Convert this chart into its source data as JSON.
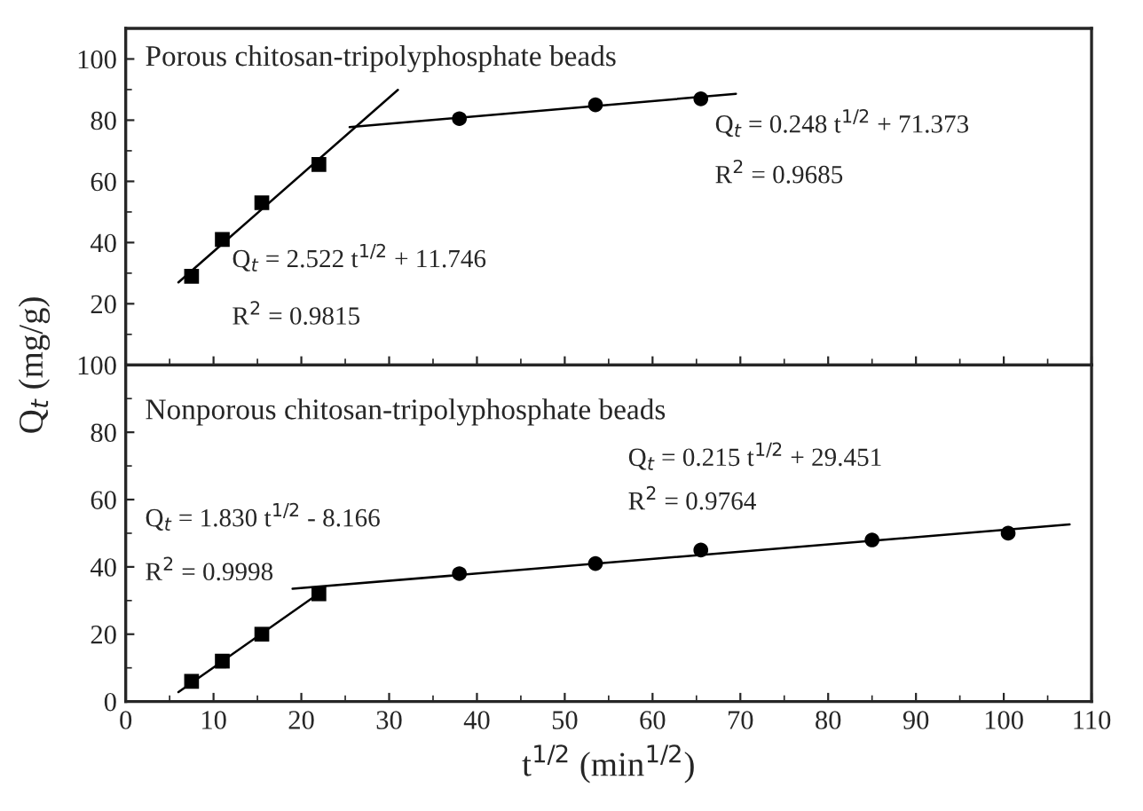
{
  "chart_data": [
    {
      "type": "scatter",
      "title": "Porous chitosan-tripolyphosphate beads",
      "ylabel": "Q$_{t}$ (mg/g)",
      "xlim": [
        0,
        110
      ],
      "xticks": [
        0,
        10,
        20,
        30,
        40,
        50,
        60,
        70,
        80,
        90,
        100,
        110
      ],
      "ylim": [
        0,
        110
      ],
      "yticks": [
        {
          "value": 0,
          "label": null
        },
        20,
        40,
        60,
        80,
        100
      ],
      "tick_labels": "y",
      "grid": false,
      "legend": false,
      "series": [
        {
          "marker": "square",
          "color": "#000000",
          "x": [
            7.5,
            11,
            15.5,
            22
          ],
          "values": [
            29,
            41,
            53,
            65.5
          ]
        },
        {
          "marker": "circle",
          "color": "#000000",
          "x": [
            38,
            53.5,
            65.5
          ],
          "values": [
            80.5,
            85,
            87
          ]
        },
        {
          "type": "line",
          "marker": "none",
          "color": "#000000",
          "x": [
            6,
            31
          ],
          "values": [
            27,
            89.9
          ]
        },
        {
          "type": "line",
          "marker": "none",
          "color": "#000000",
          "x": [
            25.5,
            69.5
          ],
          "values": [
            77.7,
            88.6
          ]
        }
      ],
      "annotations": [
        "Q$_{t}$ = 2.522 t$^{1/2}$ + 11.746",
        "R$^{2}$ = 0.9815",
        "Q$_{t}$ = 0.248 t$^{1/2}$ + 71.373",
        "R$^{2}$ = 0.9685"
      ]
    },
    {
      "type": "scatter",
      "title": "Nonporous chitosan-tripolyphosphate beads",
      "xlabel": "t$^{1/2}$ (min$^{1/2}$)",
      "xlim": [
        0,
        110
      ],
      "xticks": [
        0,
        10,
        20,
        30,
        40,
        50,
        60,
        70,
        80,
        90,
        100,
        110
      ],
      "ylim": [
        0,
        100
      ],
      "yticks": [
        0,
        20,
        40,
        60,
        80,
        100
      ],
      "grid": false,
      "legend": false,
      "series": [
        {
          "marker": "square",
          "color": "#000000",
          "x": [
            7.5,
            11,
            15.5,
            22
          ],
          "values": [
            6,
            12,
            20,
            32
          ]
        },
        {
          "marker": "circle",
          "color": "#000000",
          "x": [
            38,
            53.5,
            65.5,
            85,
            100.5
          ],
          "values": [
            38,
            41,
            45,
            48,
            50
          ]
        },
        {
          "type": "line",
          "marker": "none",
          "color": "#000000",
          "x": [
            6,
            22
          ],
          "values": [
            2.8,
            32.1
          ]
        },
        {
          "type": "line",
          "marker": "none",
          "color": "#000000",
          "x": [
            19,
            107.5
          ],
          "values": [
            33.5,
            52.6
          ]
        }
      ],
      "annotations": [
        "Q$_{t}$ = 1.830 t$^{1/2}$ - 8.166",
        "R$^{2}$ = 0.9998",
        "Q$_{t}$ = 0.215 t$^{1/2}$ + 29.451",
        "R$^{2}$ = 0.9764"
      ]
    }
  ]
}
